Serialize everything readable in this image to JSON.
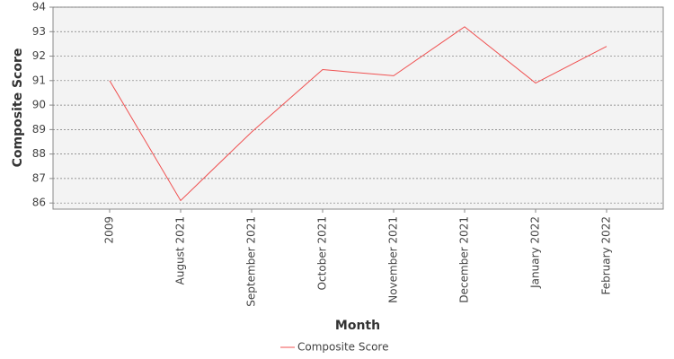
{
  "chart_data": {
    "type": "line",
    "x_label": "Month",
    "y_label": "Composite Score",
    "categories": [
      "2009",
      "August 2021",
      "September 2021",
      "October 2021",
      "November 2021",
      "December 2021",
      "January 2022",
      "February 2022"
    ],
    "series": [
      {
        "name": "Composite Score",
        "color": "#f05050",
        "values": [
          91.0,
          86.1,
          88.9,
          91.45,
          91.2,
          93.2,
          90.9,
          92.4
        ]
      }
    ],
    "ylim": [
      85.75,
      94
    ],
    "yticks": [
      86,
      87,
      88,
      89,
      90,
      91,
      92,
      93,
      94
    ],
    "grid": true,
    "legend": "bottom"
  }
}
